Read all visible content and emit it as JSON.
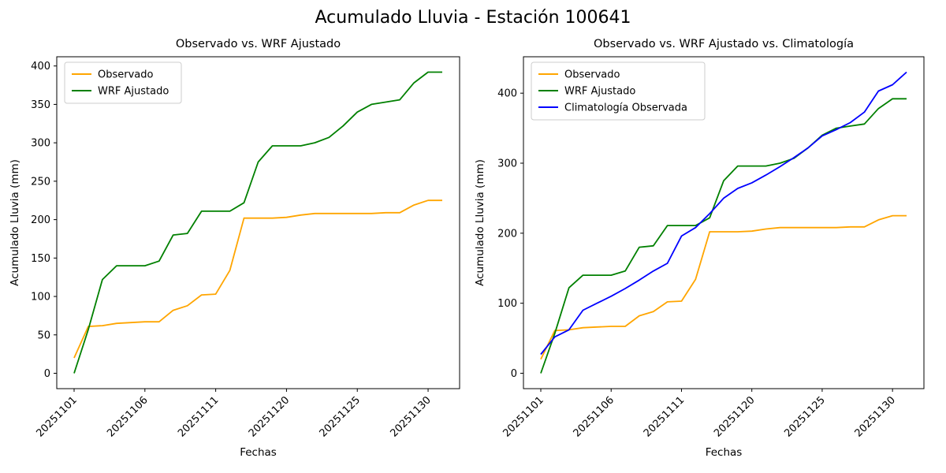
{
  "figure": {
    "title": "Acumulado Lluvia - Estación 100641"
  },
  "chart_data": [
    {
      "type": "line",
      "title": "Observado vs. WRF Ajustado",
      "xlabel": "Fechas",
      "ylabel": "Acumulado Lluvia (mm)",
      "n_points": 27,
      "x_tick_labels": [
        "20251101",
        "20251106",
        "20251111",
        "20251120",
        "20251125",
        "20251130"
      ],
      "x_tick_indices": [
        0,
        5,
        10,
        15,
        20,
        25
      ],
      "y_ticks": [
        0,
        50,
        100,
        150,
        200,
        250,
        300,
        350,
        400
      ],
      "ylim": [
        -20,
        412
      ],
      "grid": false,
      "legend_position": "upper left",
      "series": [
        {
          "name": "Observado",
          "color": "#FFA500",
          "values": [
            20,
            61,
            62,
            65,
            66,
            67,
            67,
            82,
            88,
            102,
            103,
            134,
            202,
            202,
            202,
            203,
            206,
            208,
            208,
            208,
            208,
            208,
            209,
            209,
            219,
            225,
            225
          ]
        },
        {
          "name": "WRF Ajustado",
          "color": "#008000",
          "values": [
            0,
            57,
            122,
            140,
            140,
            140,
            146,
            180,
            182,
            211,
            211,
            211,
            222,
            275,
            296,
            296,
            296,
            300,
            307,
            322,
            340,
            350,
            353,
            356,
            378,
            392,
            392
          ]
        }
      ]
    },
    {
      "type": "line",
      "title": "Observado vs. WRF Ajustado vs. Climatología",
      "xlabel": "Fechas",
      "ylabel": "Acumulado Lluvia (mm)",
      "n_points": 27,
      "x_tick_labels": [
        "20251101",
        "20251106",
        "20251111",
        "20251120",
        "20251125",
        "20251130"
      ],
      "x_tick_indices": [
        0,
        5,
        10,
        15,
        20,
        25
      ],
      "y_ticks": [
        0,
        100,
        200,
        300,
        400
      ],
      "ylim": [
        -22,
        452
      ],
      "grid": false,
      "legend_position": "upper left",
      "series": [
        {
          "name": "Observado",
          "color": "#FFA500",
          "values": [
            20,
            61,
            62,
            65,
            66,
            67,
            67,
            82,
            88,
            102,
            103,
            134,
            202,
            202,
            202,
            203,
            206,
            208,
            208,
            208,
            208,
            208,
            209,
            209,
            219,
            225,
            225
          ]
        },
        {
          "name": "WRF Ajustado",
          "color": "#008000",
          "values": [
            0,
            57,
            122,
            140,
            140,
            140,
            146,
            180,
            182,
            211,
            211,
            211,
            222,
            275,
            296,
            296,
            296,
            300,
            307,
            322,
            340,
            350,
            353,
            356,
            378,
            392,
            392
          ]
        },
        {
          "name": "Climatología Observada",
          "color": "#0000FF",
          "values": [
            27,
            52,
            62,
            90,
            100,
            110,
            121,
            133,
            146,
            157,
            196,
            208,
            228,
            250,
            264,
            272,
            283,
            295,
            308,
            322,
            339,
            348,
            358,
            373,
            403,
            412,
            430
          ]
        }
      ]
    }
  ]
}
